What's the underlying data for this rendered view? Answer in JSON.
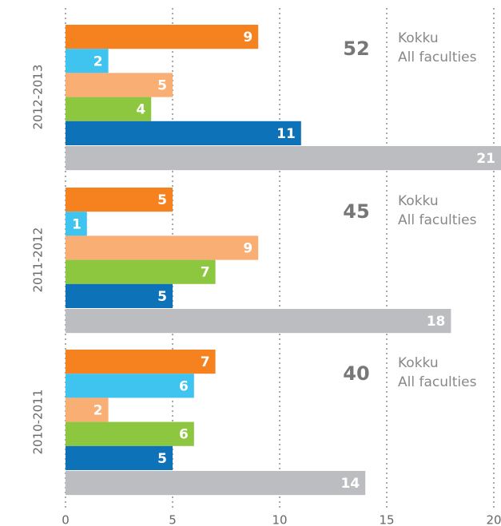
{
  "chart_data": {
    "type": "bar",
    "orientation": "horizontal",
    "categories": [
      "2012-2013",
      "2011-2012",
      "2010-2011"
    ],
    "series": [
      {
        "color": "#f5821f",
        "values": [
          9,
          5,
          7
        ]
      },
      {
        "color": "#3fc4f0",
        "values": [
          2,
          1,
          6
        ]
      },
      {
        "color": "#f9ae74",
        "values": [
          5,
          9,
          2
        ]
      },
      {
        "color": "#8dc63f",
        "values": [
          4,
          7,
          6
        ]
      },
      {
        "color": "#0e72b9",
        "values": [
          11,
          5,
          5
        ]
      },
      {
        "color": "#bcbdc0",
        "values": [
          21,
          18,
          14
        ]
      }
    ],
    "totals": [
      52,
      45,
      40
    ],
    "total_label": "Kokku",
    "total_sublabel": "All faculties",
    "xlim": [
      0,
      20
    ],
    "xticks": [
      0,
      5,
      10,
      15,
      20
    ],
    "grid": true
  }
}
